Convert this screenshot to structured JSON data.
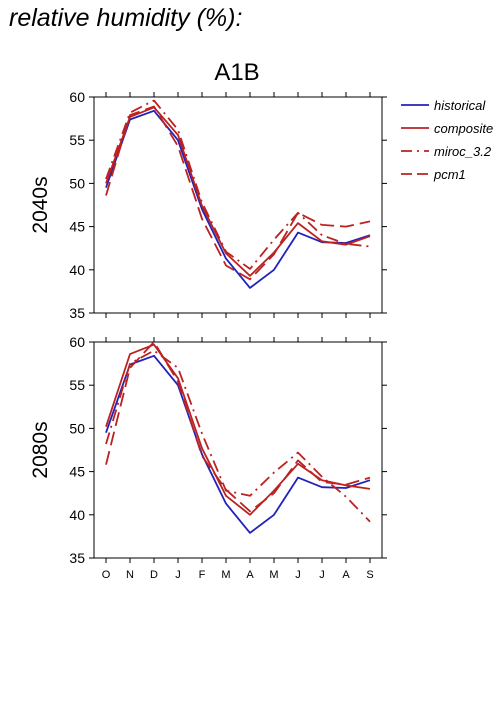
{
  "page_title": "relative humidity (%):",
  "chart_data": {
    "type": "line",
    "title": "A1B",
    "x": [
      "O",
      "N",
      "D",
      "J",
      "F",
      "M",
      "A",
      "M",
      "J",
      "J",
      "A",
      "S"
    ],
    "ylim": [
      35,
      60
    ],
    "yticks": [
      35,
      40,
      45,
      50,
      55,
      60
    ],
    "grid": false,
    "legend_position": "right",
    "legend": [
      {
        "name": "historical",
        "color": "#2222bb",
        "dash": "solid"
      },
      {
        "name": "composite",
        "color": "#bb2222",
        "dash": "solid"
      },
      {
        "name": "miroc_3.2",
        "color": "#bb2222",
        "dash": "dashdot"
      },
      {
        "name": "pcm1",
        "color": "#bb2222",
        "dash": "dashed"
      }
    ],
    "panels": [
      {
        "ylabel": "2040s",
        "series": [
          {
            "name": "historical",
            "values": [
              49.5,
              57.4,
              58.4,
              55.0,
              47.0,
              41.3,
              37.9,
              40.0,
              44.3,
              43.2,
              43.1,
              44.0
            ]
          },
          {
            "name": "composite",
            "values": [
              50.0,
              57.7,
              58.8,
              55.6,
              47.4,
              41.9,
              39.3,
              42.0,
              45.4,
              43.3,
              42.9,
              43.9
            ]
          },
          {
            "name": "miroc_3.2",
            "values": [
              50.5,
              58.2,
              59.6,
              56.2,
              47.8,
              42.1,
              40.1,
              43.5,
              46.6,
              44.0,
              43.0,
              42.7
            ]
          },
          {
            "name": "pcm1",
            "values": [
              48.6,
              57.9,
              58.9,
              54.3,
              45.9,
              40.5,
              38.9,
              41.8,
              46.6,
              45.2,
              45.0,
              45.6
            ]
          }
        ]
      },
      {
        "ylabel": "2080s",
        "series": [
          {
            "name": "historical",
            "values": [
              49.5,
              57.4,
              58.4,
              55.0,
              47.0,
              41.3,
              37.9,
              40.0,
              44.3,
              43.2,
              43.1,
              44.0
            ]
          },
          {
            "name": "composite",
            "values": [
              50.2,
              58.6,
              59.7,
              55.8,
              47.7,
              42.2,
              40.0,
              42.8,
              45.9,
              44.0,
              43.4,
              43.0
            ]
          },
          {
            "name": "miroc_3.2",
            "values": [
              48.2,
              57.5,
              59.0,
              57.0,
              49.4,
              42.8,
              42.2,
              44.9,
              47.2,
              44.4,
              42.1,
              39.2
            ]
          },
          {
            "name": "pcm1",
            "values": [
              45.8,
              57.0,
              60.0,
              55.4,
              46.8,
              42.9,
              40.4,
              42.5,
              46.3,
              43.8,
              43.5,
              44.3
            ]
          }
        ]
      }
    ]
  }
}
